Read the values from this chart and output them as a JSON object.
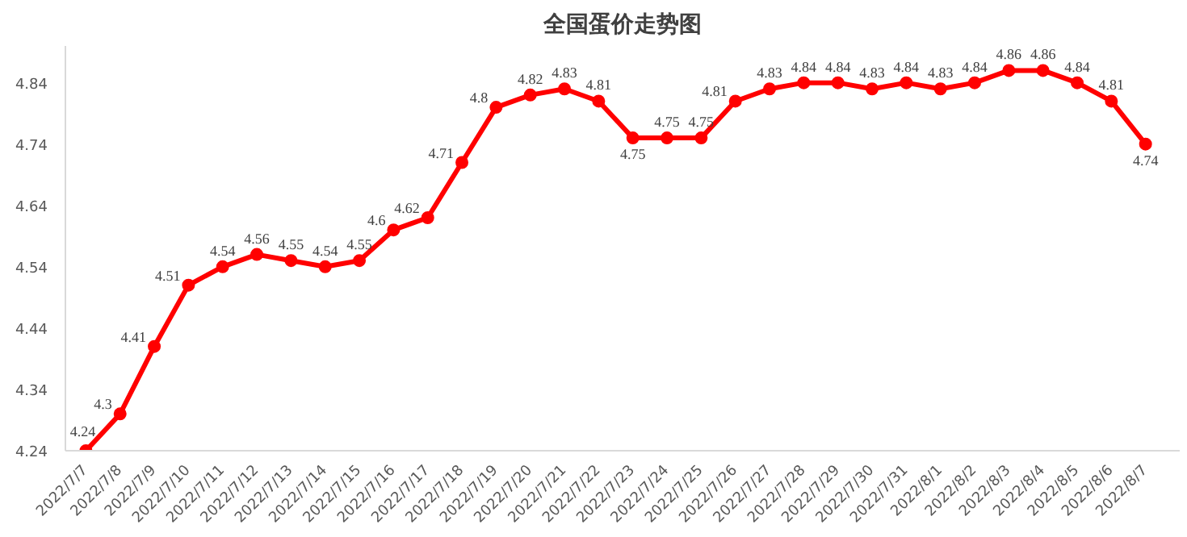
{
  "chart_data": {
    "type": "line",
    "title": "全国蛋价走势图",
    "categories": [
      "2022/7/7",
      "2022/7/8",
      "2022/7/9",
      "2022/7/10",
      "2022/7/11",
      "2022/7/12",
      "2022/7/13",
      "2022/7/14",
      "2022/7/15",
      "2022/7/16",
      "2022/7/17",
      "2022/7/18",
      "2022/7/19",
      "2022/7/20",
      "2022/7/21",
      "2022/7/22",
      "2022/7/23",
      "2022/7/24",
      "2022/7/25",
      "2022/7/26",
      "2022/7/27",
      "2022/7/28",
      "2022/7/29",
      "2022/7/30",
      "2022/7/31",
      "2022/8/1",
      "2022/8/2",
      "2022/8/3",
      "2022/8/4",
      "2022/8/5",
      "2022/8/6",
      "2022/8/7"
    ],
    "series": [
      {
        "color": "#ff0000",
        "values": [
          4.24,
          4.3,
          4.41,
          4.51,
          4.54,
          4.56,
          4.55,
          4.54,
          4.55,
          4.6,
          4.62,
          4.71,
          4.8,
          4.82,
          4.83,
          4.81,
          4.75,
          4.75,
          4.75,
          4.81,
          4.83,
          4.84,
          4.84,
          4.83,
          4.84,
          4.83,
          4.84,
          4.86,
          4.86,
          4.84,
          4.81,
          4.74
        ]
      }
    ],
    "ylim": [
      4.24,
      4.9
    ],
    "yticks": [
      4.24,
      4.34,
      4.44,
      4.54,
      4.64,
      4.74,
      4.84
    ],
    "grid": false,
    "data_labels": true,
    "marker": "circle",
    "line_style": "solid"
  }
}
